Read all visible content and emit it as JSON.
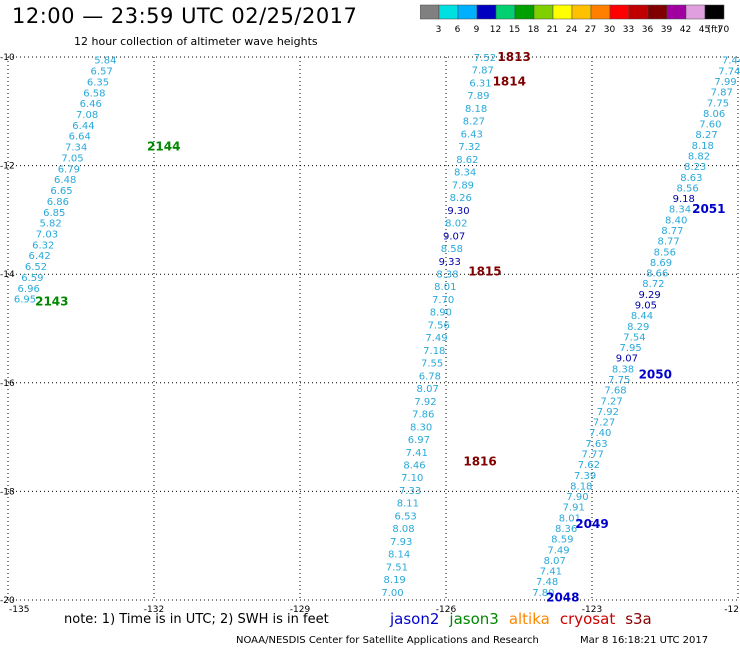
{
  "title": "12:00 — 23:59 UTC 02/25/2017",
  "subtitle": "12 hour collection of altimeter wave heights",
  "colorbar": {
    "unit": "(ft)",
    "labels": [
      "3",
      "6",
      "9",
      "12",
      "15",
      "18",
      "21",
      "24",
      "27",
      "30",
      "33",
      "36",
      "39",
      "42",
      "45",
      "70"
    ],
    "colors": [
      "#808080",
      "#00e0e0",
      "#00b0ff",
      "#0000c0",
      "#00d070",
      "#00a000",
      "#80d000",
      "#ffff00",
      "#ffc000",
      "#ff8000",
      "#ff0000",
      "#c00000",
      "#800000",
      "#a000a0",
      "#e0a0e0",
      "#000000"
    ]
  },
  "note": "note:  1) Time is in UTC;  2) SWH is in feet",
  "satellites": [
    {
      "name": "jason2",
      "color": "#0000cc"
    },
    {
      "name": "jason3",
      "color": "#008800"
    },
    {
      "name": "altika",
      "color": "#ff8800"
    },
    {
      "name": "cryosat",
      "color": "#cc0000"
    },
    {
      "name": "s3a",
      "color": "#880000"
    }
  ],
  "credit": "NOAA/NESDIS Center for Satellite Applications and Research",
  "stamp": "Mar  8 16:18:21 UTC 2017",
  "chart_data": {
    "type": "scatter",
    "x_label": "longitude",
    "y_label": "latitude",
    "xlim": [
      -135,
      -120
    ],
    "ylim": [
      -20,
      -10
    ],
    "x_ticks": [
      "-135",
      "-132",
      "-129",
      "-126",
      "-123",
      "-12"
    ],
    "y_ticks": [
      "-10",
      "-12",
      "-14",
      "-16",
      "-18",
      "-20"
    ],
    "grid": true,
    "passes": [
      {
        "label": "2144",
        "color": "#008800",
        "lon": -131.8,
        "lat": -11.65
      },
      {
        "label": "2143",
        "color": "#008800",
        "lon": -134.1,
        "lat": -14.5
      },
      {
        "label": "1813",
        "color": "#800000",
        "lon": -124.6,
        "lat": -10.0
      },
      {
        "label": "1814",
        "color": "#800000",
        "lon": -124.7,
        "lat": -10.45
      },
      {
        "label": "1815",
        "color": "#800000",
        "lon": -125.2,
        "lat": -13.95
      },
      {
        "label": "1816",
        "color": "#800000",
        "lon": -125.3,
        "lat": -17.45
      },
      {
        "label": "2051",
        "color": "#0000cc",
        "lon": -120.6,
        "lat": -12.8
      },
      {
        "label": "2050",
        "color": "#0000cc",
        "lon": -121.7,
        "lat": -15.85
      },
      {
        "label": "2049",
        "color": "#0000cc",
        "lon": -123.0,
        "lat": -18.6
      },
      {
        "label": "2048",
        "color": "#0000cc",
        "lon": -123.6,
        "lat": -19.95
      }
    ],
    "tracks": [
      {
        "name": "left",
        "color": "#29a9d9",
        "lon_start": -133.0,
        "lat_start": -10.05,
        "lon_end": -134.65,
        "lat_end": -14.45,
        "values": [
          "5.84",
          "6.57",
          "6.35",
          "6.58",
          "6.46",
          "7.08",
          "6.44",
          "6.64",
          "7.34",
          "7.05",
          "6.79",
          "6.48",
          "6.65",
          "6.86",
          "6.85",
          "5.82",
          "7.03",
          "6.32",
          "6.42",
          "6.52",
          "6.59",
          "6.96",
          "6.95"
        ]
      },
      {
        "name": "middle",
        "color": "#29a9d9",
        "lon_start": -125.2,
        "lat_start": -10.0,
        "lon_end": -127.1,
        "lat_end": -19.85,
        "values": [
          "7.52",
          "7.87",
          "6.31",
          "7.89",
          "8.18",
          "8.27",
          "6.43",
          "7.32",
          "8.62",
          "8.34",
          "7.89",
          "8.26",
          "9.30",
          "8.02",
          "9.07",
          "8.58",
          "9.33",
          "8.38",
          "8.01",
          "7.70",
          "8.90",
          "7.56",
          "7.49",
          "7.18",
          "7.55",
          "6.78",
          "8.07",
          "7.92",
          "7.86",
          "8.30",
          "6.97",
          "7.41",
          "8.46",
          "7.10",
          "7.33",
          "8.11",
          "6.53",
          "8.08",
          "7.93",
          "8.14",
          "7.51",
          "8.19",
          "7.00"
        ],
        "dark": [
          12,
          14,
          16
        ]
      },
      {
        "name": "right",
        "color": "#29a9d9",
        "lon_start": -120.1,
        "lat_start": -10.05,
        "lon_end": -124.0,
        "lat_end": -19.85,
        "values": [
          "7.44",
          "7.74",
          "7.99",
          "7.87",
          "7.75",
          "8.06",
          "7.60",
          "8.27",
          "8.18",
          "8.82",
          "8.23",
          "8.63",
          "8.56",
          "9.18",
          "8.34",
          "8.40",
          "8.77",
          "8.77",
          "8.56",
          "8.69",
          "8.66",
          "8.72",
          "9.29",
          "9.05",
          "8.44",
          "8.29",
          "7.54",
          "7.95",
          "9.07",
          "8.38",
          "7.75",
          "7.68",
          "7.27",
          "7.92",
          "7.27",
          "7.40",
          "7.63",
          "7.77",
          "7.62",
          "7.39",
          "8.18",
          "7.90",
          "7.91",
          "8.01",
          "8.36",
          "8.59",
          "7.49",
          "8.07",
          "7.41",
          "7.48",
          "7.80"
        ],
        "dark": [
          13,
          22,
          23,
          28
        ]
      }
    ]
  }
}
